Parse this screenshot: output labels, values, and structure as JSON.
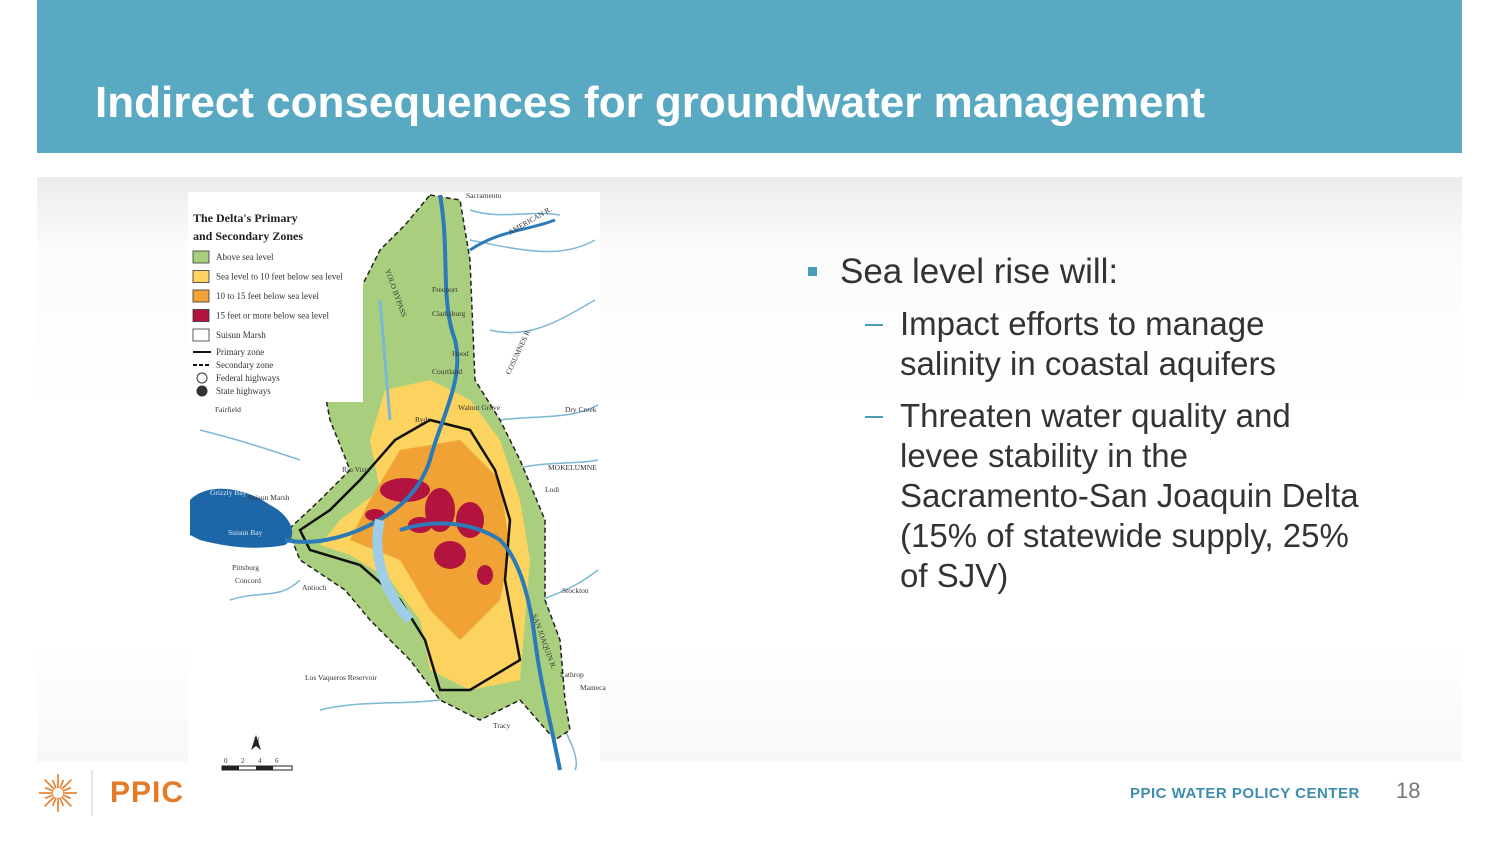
{
  "header": {
    "title": "Indirect consequences for groundwater management"
  },
  "map": {
    "title": [
      "The Delta's Primary",
      "and Secondary Zones"
    ],
    "legend": [
      "Above sea level",
      "Sea level to 10 feet below sea level",
      "10 to 15 feet below sea level",
      "15 feet or more below sea level",
      "Suisun Marsh",
      "Primary zone",
      "Secondary zone",
      "Federal highways",
      "State highways"
    ],
    "places": [
      "Sacramento",
      "AMERICAN R.",
      "YOLO BYPASS",
      "Freeport",
      "Clarksburg",
      "Hood",
      "Courtland",
      "COSUMNES R.",
      "Dry Creek",
      "Ryde",
      "Walnut Grove",
      "MOKELUMNE",
      "Lodi",
      "Fairfield",
      "Rio Vista",
      "Grizzly Bay",
      "Suisun Marsh",
      "Suisun Bay",
      "Pittsburg",
      "Concord",
      "Antioch",
      "Stockton",
      "SAN JOAQUIN R.",
      "Lathrop",
      "Manteca",
      "Los Vaqueros Reservoir",
      "Tracy",
      "N"
    ],
    "scale": [
      "0",
      "2",
      "4",
      "6"
    ]
  },
  "bullets": [
    {
      "text": "Sea level rise will:",
      "sub": [
        "Impact efforts to manage salinity in coastal aquifers",
        "Threaten water quality and levee stability in the Sacramento-San Joaquin Delta (15% of statewide supply, 25% of SJV)"
      ]
    }
  ],
  "footer": {
    "logo": "PPIC",
    "center": "PPIC WATER POLICY CENTER",
    "page": "18"
  }
}
